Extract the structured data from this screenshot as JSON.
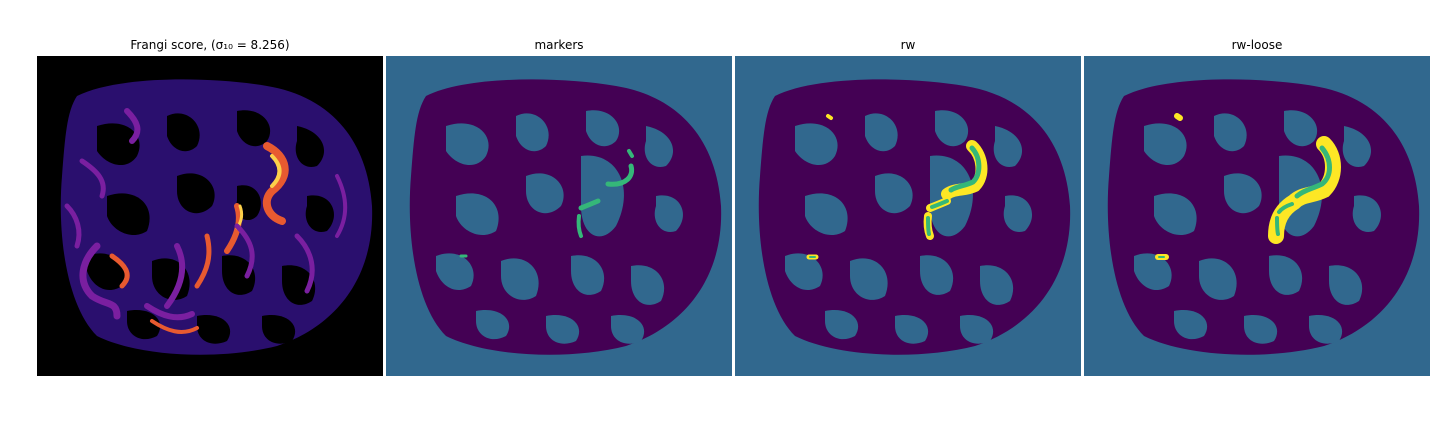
{
  "figure": {
    "panels": [
      {
        "title": "Frangi score, (σ₁₀ = 8.256)"
      },
      {
        "title": "markers"
      },
      {
        "title": "rw"
      },
      {
        "title": "rw-loose"
      }
    ]
  },
  "colors": {
    "background_dark": "#000000",
    "frangi_tissue": "#2a0f6e",
    "frangi_mid": "#7a1fa0",
    "frangi_high": "#e85a30",
    "frangi_peak": "#fcd04a",
    "label_background": "#31688e",
    "label_tissue": "#440154",
    "label_marker": "#35b779",
    "label_highlight": "#fde725"
  }
}
